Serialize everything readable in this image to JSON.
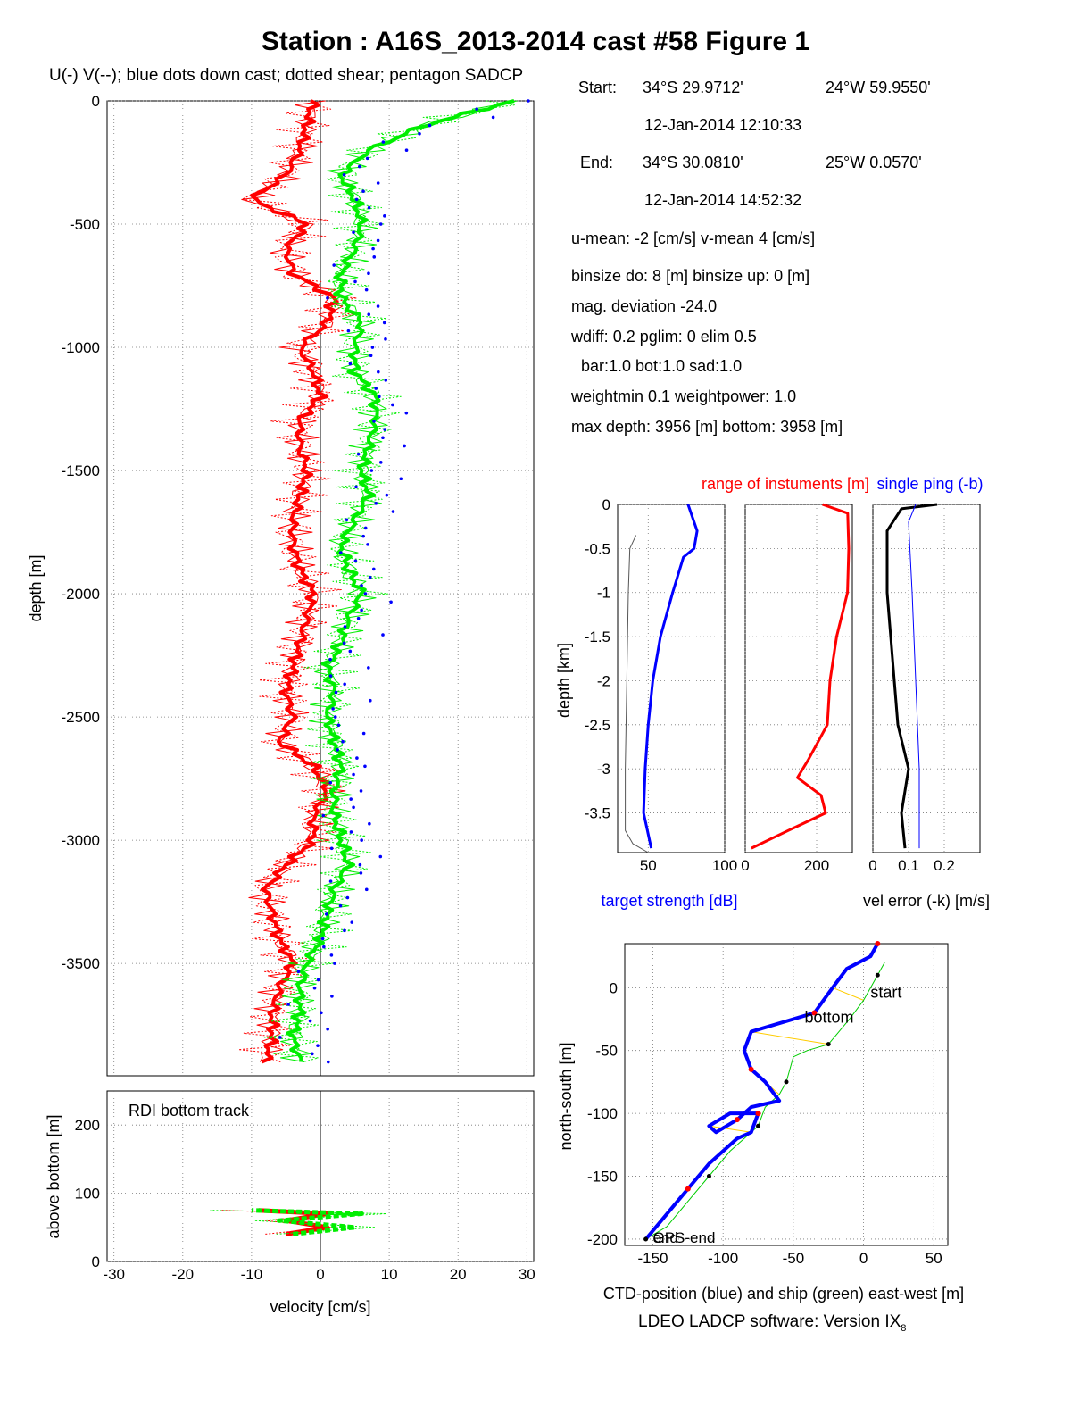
{
  "figure": {
    "title": "Station : A16S_2013-2014 cast #58  Figure 1",
    "subtitle": "U(-) V(--); blue dots down cast; dotted shear; pentagon SADCP",
    "footer": "LDEO LADCP software: Version IX",
    "footer_sub": "8"
  },
  "info": {
    "start_label": "Start:",
    "start_lat": "34°S 29.9712'",
    "start_lon": "24°W 59.9550'",
    "start_time": "12-Jan-2014 12:10:33",
    "end_label": "End:",
    "end_lat": "34°S 30.0810'",
    "end_lon": "25°W  0.0570'",
    "end_time": "12-Jan-2014 14:52:32",
    "means": "u-mean:  -2 [cm/s]    v-mean   4 [cm/s]",
    "binsize": "binsize do: 8 [m]  binsize up:  0 [m]",
    "magdev": "mag. deviation -24.0",
    "wdiff": "wdiff: 0.2  pglim: 0  elim 0.5",
    "bar": "bar:1.0 bot:1.0 sad:1.0",
    "weight": "weightmin 0.1  weightpower: 1.0",
    "depth": "max depth: 3956 [m]   bottom: 3958 [m]"
  },
  "colors": {
    "u_profile": "#ff0000",
    "v_profile": "#00ee00",
    "down_dots": "#0000ff",
    "track": "#0000ff",
    "ship": "#00cc00",
    "link": "#ffcc00"
  },
  "chart_data": [
    {
      "type": "line",
      "name": "velocity-profile",
      "xlabel": "velocity [cm/s]",
      "ylabel": "depth [m]",
      "xlim": [
        -31,
        31
      ],
      "ylim": [
        -3956,
        0
      ],
      "xticks": [
        -30,
        -20,
        -10,
        0,
        10,
        20,
        30
      ],
      "yticks": [
        0,
        -500,
        -1000,
        -1500,
        -2000,
        -2500,
        -3000,
        -3500
      ],
      "grid": true,
      "series": [
        {
          "name": "U",
          "color": "#ff0000",
          "depth": [
            0,
            -100,
            -200,
            -300,
            -400,
            -500,
            -600,
            -700,
            -800,
            -900,
            -1000,
            -1100,
            -1200,
            -1300,
            -1400,
            -1500,
            -1600,
            -1700,
            -1800,
            -1900,
            -2000,
            -2100,
            -2200,
            -2300,
            -2400,
            -2500,
            -2600,
            -2700,
            -2800,
            -2900,
            -3000,
            -3100,
            -3200,
            -3300,
            -3400,
            -3500,
            -3600,
            -3700,
            -3800,
            -3900
          ],
          "values": [
            -1,
            -2,
            -3,
            -5,
            -10,
            -2,
            -5,
            -4,
            2,
            1,
            -3,
            -1,
            0,
            -3,
            -3,
            -2,
            -3,
            -4,
            -4,
            -3,
            -1,
            -2,
            -3,
            -4,
            -5,
            -4,
            -6,
            -1,
            1,
            -1,
            -1,
            -5,
            -8,
            -7,
            -6,
            -4,
            -6,
            -7,
            -7,
            -8
          ]
        },
        {
          "name": "V",
          "color": "#00ee00",
          "depth": [
            0,
            -100,
            -200,
            -300,
            -400,
            -500,
            -600,
            -700,
            -800,
            -900,
            -1000,
            -1100,
            -1200,
            -1300,
            -1400,
            -1500,
            -1600,
            -1700,
            -1800,
            -1900,
            -2000,
            -2100,
            -2200,
            -2300,
            -2400,
            -2500,
            -2600,
            -2700,
            -2800,
            -2900,
            -3000,
            -3100,
            -3200,
            -3300,
            -3400,
            -3500,
            -3600,
            -3700,
            -3800,
            -3900
          ],
          "values": [
            28,
            15,
            7,
            3,
            5,
            6,
            5,
            3,
            3,
            6,
            5,
            5,
            8,
            8,
            7,
            6,
            7,
            5,
            3,
            4,
            6,
            4,
            3,
            1,
            2,
            1,
            2,
            3,
            2,
            2,
            3,
            4,
            2,
            1,
            0,
            -2,
            -3,
            -3,
            -4,
            -3
          ]
        }
      ]
    },
    {
      "type": "line",
      "name": "bottom-track",
      "title": "RDI bottom track",
      "xlabel": "velocity [cm/s]",
      "ylabel": "above bottom [m]",
      "xlim": [
        -31,
        31
      ],
      "ylim": [
        0,
        250
      ],
      "yticks": [
        0,
        100,
        200
      ],
      "series": [
        {
          "name": "U",
          "color": "#ff0000",
          "height": [
            40,
            50,
            60,
            70,
            75
          ],
          "values": [
            -5,
            1,
            -5,
            1,
            -9
          ]
        },
        {
          "name": "V",
          "color": "#00ee00",
          "height": [
            40,
            50,
            60,
            70,
            75
          ],
          "values": [
            -4,
            5,
            -6,
            6,
            -10
          ]
        }
      ]
    },
    {
      "type": "line",
      "name": "target-strength",
      "xlabel": "target strength [dB]",
      "ylabel": "depth [km]",
      "xlim": [
        30,
        100
      ],
      "ylim": [
        -3.95,
        0
      ],
      "xticks": [
        50,
        100
      ],
      "yticks": [
        0,
        -0.5,
        -1,
        -1.5,
        -2,
        -2.5,
        -3,
        -3.5
      ],
      "series": [
        {
          "name": "target strength",
          "color": "#0000ff",
          "depth": [
            0,
            -0.3,
            -0.5,
            -0.6,
            -1,
            -1.5,
            -2,
            -2.5,
            -3,
            -3.5,
            -3.9
          ],
          "values": [
            76,
            82,
            80,
            73,
            66,
            58,
            53,
            50,
            48,
            47,
            52
          ]
        },
        {
          "name": "minimum",
          "color": "#555555",
          "depth": [
            -0.35,
            -0.5,
            -1,
            -2,
            -3,
            -3.7,
            -3.85,
            -3.95
          ],
          "values": [
            42,
            38,
            37,
            36,
            35,
            35,
            40,
            50
          ]
        }
      ]
    },
    {
      "type": "line",
      "name": "instrument-range",
      "title": "range of instuments [m]",
      "xlim": [
        0,
        300
      ],
      "ylim": [
        -3.95,
        0
      ],
      "xticks": [
        0,
        200
      ],
      "series": [
        {
          "name": "range",
          "color": "#ff0000",
          "depth": [
            0,
            -0.1,
            -0.5,
            -1,
            -1.5,
            -2,
            -2.5,
            -2.9,
            -3.1,
            -3.3,
            -3.5,
            -3.7,
            -3.9
          ],
          "values": [
            220,
            285,
            290,
            285,
            260,
            235,
            230,
            175,
            150,
            210,
            225,
            120,
            20
          ]
        }
      ]
    },
    {
      "type": "line",
      "name": "velocity-error",
      "title": "single ping (-b)",
      "xlabel": "vel error (-k) [m/s]",
      "xlim": [
        0,
        0.3
      ],
      "ylim": [
        -3.95,
        0
      ],
      "xticks": [
        0,
        0.1,
        0.2
      ],
      "series": [
        {
          "name": "-k",
          "color": "#000000",
          "depth": [
            0,
            -0.05,
            -0.3,
            -1,
            -2,
            -2.5,
            -3,
            -3.5,
            -3.9
          ],
          "values": [
            0.18,
            0.08,
            0.04,
            0.04,
            0.06,
            0.07,
            0.1,
            0.08,
            0.09
          ]
        },
        {
          "name": "-b",
          "color": "#0000ff",
          "depth": [
            0,
            -0.2,
            -1,
            -2,
            -3,
            -3.9
          ],
          "values": [
            0.12,
            0.1,
            0.11,
            0.12,
            0.13,
            0.13
          ]
        }
      ]
    },
    {
      "type": "line",
      "name": "position",
      "xlabel": "CTD-position (blue) and ship (green) east-west [m]",
      "ylabel": "north-south [m]",
      "xlim": [
        -170,
        60
      ],
      "ylim": [
        -205,
        35
      ],
      "xticks": [
        -150,
        -100,
        -50,
        0,
        50
      ],
      "yticks": [
        0,
        -50,
        -100,
        -150,
        -200
      ],
      "annotations": [
        "start",
        "bottom",
        "GPS-end",
        "end"
      ],
      "series": [
        {
          "name": "CTD-position",
          "color": "#0000ff",
          "x": [
            10,
            5,
            -12,
            -22,
            -35,
            -50,
            -80,
            -85,
            -80,
            -70,
            -60,
            -80,
            -90,
            -105,
            -110,
            -95,
            -75,
            -80,
            -90,
            -110,
            -125,
            -140,
            -155
          ],
          "y": [
            35,
            25,
            15,
            0,
            -20,
            -25,
            -35,
            -50,
            -65,
            -75,
            -90,
            -95,
            -105,
            -115,
            -110,
            -100,
            -100,
            -115,
            -120,
            -140,
            -160,
            -180,
            -200
          ]
        },
        {
          "name": "ship",
          "color": "#00cc00",
          "x": [
            15,
            10,
            0,
            -10,
            -25,
            -40,
            -50,
            -55,
            -60,
            -70,
            -75,
            -80,
            -95,
            -110,
            -125,
            -140,
            -155
          ],
          "y": [
            20,
            10,
            -10,
            -25,
            -45,
            -50,
            -55,
            -75,
            -85,
            -95,
            -110,
            -115,
            -130,
            -150,
            -170,
            -190,
            -200
          ]
        }
      ]
    }
  ]
}
